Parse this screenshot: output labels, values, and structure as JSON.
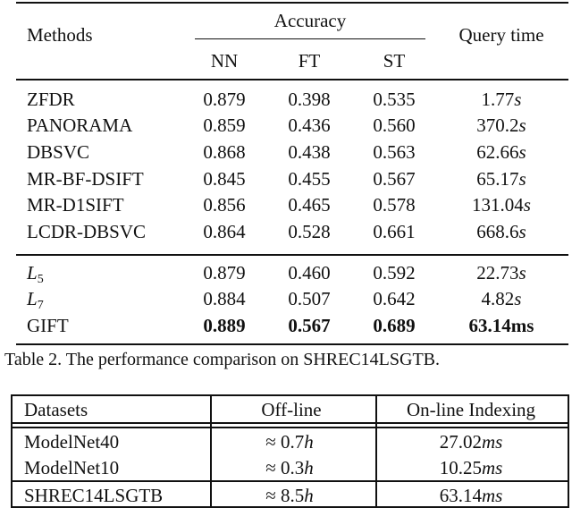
{
  "table2": {
    "header": {
      "methods": "Methods",
      "accuracy": "Accuracy",
      "nn": "NN",
      "ft": "FT",
      "st": "ST",
      "query_time": "Query time"
    },
    "group1": [
      {
        "method": "ZFDR",
        "nn": "0.879",
        "ft": "0.398",
        "st": "0.535",
        "time_num": "1.77",
        "time_unit": "s"
      },
      {
        "method": "PANORAMA",
        "nn": "0.859",
        "ft": "0.436",
        "st": "0.560",
        "time_num": "370.2",
        "time_unit": "s"
      },
      {
        "method": "DBSVC",
        "nn": "0.868",
        "ft": "0.438",
        "st": "0.563",
        "time_num": "62.66",
        "time_unit": "s"
      },
      {
        "method": "MR-BF-DSIFT",
        "nn": "0.845",
        "ft": "0.455",
        "st": "0.567",
        "time_num": "65.17",
        "time_unit": "s"
      },
      {
        "method": "MR-D1SIFT",
        "nn": "0.856",
        "ft": "0.465",
        "st": "0.578",
        "time_num": "131.04",
        "time_unit": "s"
      },
      {
        "method": "LCDR-DBSVC",
        "nn": "0.864",
        "ft": "0.528",
        "st": "0.661",
        "time_num": "668.6",
        "time_unit": "s"
      }
    ],
    "group2": [
      {
        "method_base": "L",
        "method_sub": "5",
        "nn": "0.879",
        "ft": "0.460",
        "st": "0.592",
        "time_num": "22.73",
        "time_unit": "s"
      },
      {
        "method_base": "L",
        "method_sub": "7",
        "nn": "0.884",
        "ft": "0.507",
        "st": "0.642",
        "time_num": "4.82",
        "time_unit": "s"
      }
    ],
    "gift": {
      "method": "GIFT",
      "nn": "0.889",
      "ft": "0.567",
      "st": "0.689",
      "time": "63.14ms"
    },
    "caption": "Table 2. The performance comparison on SHREC14LSGTB."
  },
  "table3": {
    "header": {
      "datasets": "Datasets",
      "offline": "Off-line",
      "online": "On-line Indexing"
    },
    "rows": [
      {
        "dataset": "ModelNet40",
        "approx": "≈",
        "offline_num": "0.7",
        "offline_unit": "h",
        "online_num": "27.02",
        "online_unit": "ms"
      },
      {
        "dataset": "ModelNet10",
        "approx": "≈",
        "offline_num": "0.3",
        "offline_unit": "h",
        "online_num": "10.25",
        "online_unit": "ms"
      },
      {
        "dataset": "SHREC14LSGTB",
        "approx": "≈",
        "offline_num": "8.5",
        "offline_unit": "h",
        "online_num": "63.14",
        "online_unit": "ms"
      }
    ]
  }
}
